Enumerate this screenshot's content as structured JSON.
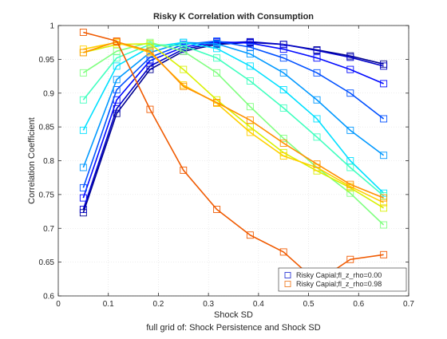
{
  "chart_data": {
    "type": "line",
    "title": "Risky K Correlation with Consumption",
    "xlabel": "Shock SD",
    "ylabel": "Correlation Coefficient",
    "caption": "full grid of: Shock Persistence and Shock SD",
    "xlim": [
      0,
      0.7
    ],
    "ylim": [
      0.6,
      1.0
    ],
    "xticks": [
      "0",
      "0.1",
      "0.2",
      "0.3",
      "0.4",
      "0.5",
      "0.6",
      "0.7"
    ],
    "yticks": [
      "0.6",
      "0.65",
      "0.7",
      "0.75",
      "0.8",
      "0.85",
      "0.9",
      "0.95",
      "1"
    ],
    "grid": true,
    "legend_position": "bottom-right",
    "x": [
      0.05,
      0.1167,
      0.1833,
      0.25,
      0.3167,
      0.3833,
      0.45,
      0.5167,
      0.5833,
      0.65
    ],
    "legend": [
      {
        "label": "Risky Capial;fl_z_rho=0.00",
        "color": "#2f3bd6"
      },
      {
        "label": "Risky Capial;fl_z_rho=0.98",
        "color": "#f07f2a"
      }
    ],
    "series": [
      {
        "color": "#00008f",
        "values": [
          0.723,
          0.87,
          0.935,
          0.962,
          0.972,
          0.975,
          0.972,
          0.964,
          0.955,
          0.943
        ],
        "show_markers": true
      },
      {
        "color": "#0000c8",
        "values": [
          0.728,
          0.877,
          0.94,
          0.965,
          0.974,
          0.976,
          0.972,
          0.963,
          0.953,
          0.94
        ],
        "show_markers": true
      },
      {
        "color": "#0008ff",
        "values": [
          0.745,
          0.89,
          0.948,
          0.968,
          0.976,
          0.974,
          0.965,
          0.952,
          0.935,
          0.914
        ],
        "show_markers": true
      },
      {
        "color": "#0050ff",
        "values": [
          0.76,
          0.905,
          0.953,
          0.972,
          0.977,
          0.968,
          0.952,
          0.93,
          0.9,
          0.862
        ],
        "show_markers": true
      },
      {
        "color": "#0098ff",
        "values": [
          0.79,
          0.92,
          0.96,
          0.975,
          0.973,
          0.958,
          0.93,
          0.89,
          0.845,
          0.808
        ],
        "show_markers": true
      },
      {
        "color": "#00e0ff",
        "values": [
          0.845,
          0.94,
          0.968,
          0.975,
          0.966,
          0.94,
          0.905,
          0.862,
          0.8,
          0.752
        ],
        "show_markers": true
      },
      {
        "color": "#40ffbf",
        "values": [
          0.89,
          0.952,
          0.972,
          0.97,
          0.952,
          0.918,
          0.878,
          0.835,
          0.79,
          0.748
        ],
        "show_markers": true
      },
      {
        "color": "#80ff80",
        "values": [
          0.93,
          0.962,
          0.975,
          0.962,
          0.93,
          0.88,
          0.833,
          0.79,
          0.752,
          0.705
        ],
        "show_markers": true
      },
      {
        "color": "#d8f000",
        "values": [
          0.96,
          0.972,
          0.973,
          0.935,
          0.89,
          0.85,
          0.812,
          0.785,
          0.76,
          0.73
        ],
        "show_markers": true
      },
      {
        "color": "#ffd000",
        "values": [
          0.965,
          0.975,
          0.96,
          0.912,
          0.885,
          0.842,
          0.807,
          0.79,
          0.762,
          0.738
        ],
        "show_markers": true
      },
      {
        "color": "#ff9000",
        "values": [
          0.96,
          0.976,
          0.962,
          0.91,
          0.886,
          0.86,
          0.826,
          0.795,
          0.765,
          0.745
        ],
        "show_markers": true
      },
      {
        "color": "#f05a00",
        "values": [
          0.99,
          0.977,
          0.876,
          0.786,
          0.728,
          0.69,
          0.665,
          0.621,
          0.654,
          0.661
        ],
        "show_markers": true
      }
    ]
  }
}
